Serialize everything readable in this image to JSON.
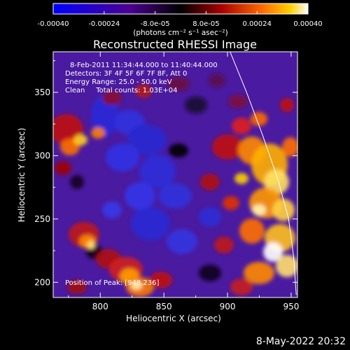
{
  "chart_data": {
    "type": "heatmap",
    "title": "Reconstructed RHESSI Image",
    "xlabel": "Heliocentric X (arcsec)",
    "ylabel": "Heliocentric Y (arcsec)",
    "xlim": [
      763,
      955
    ],
    "ylim": [
      188,
      382
    ],
    "x_ticks": [
      800,
      850,
      900,
      950
    ],
    "y_ticks": [
      200,
      250,
      300,
      350
    ],
    "colorbar": {
      "range": [
        -0.0004,
        0.0004
      ],
      "tick_values": [
        -0.0004,
        -0.00024,
        -8e-05,
        8e-05,
        0.00024,
        0.0004
      ],
      "tick_labels": [
        "-0.00040",
        "-0.00024",
        "-8.0e-05",
        "8.0e-05",
        "0.00024",
        "0.00040"
      ],
      "unit_label": "(photons cm⁻² s⁻¹ asec⁻²)"
    },
    "annotations": [
      "8-Feb-2011 11:34:44.000 to 11:40:44.000",
      "Detectors: 3F 4F 5F 6F 7F 8F, Att 0",
      "Energy Range: 25.0 - 50.0 keV",
      "Clean     Total counts: 1.03E+04"
    ],
    "peak_label": "Position of Peak: [948,236]",
    "limb_curve": [
      [
        902,
        382
      ],
      [
        915,
        350
      ],
      [
        928,
        315
      ],
      [
        940,
        280
      ],
      [
        948,
        250
      ],
      [
        952,
        220
      ],
      [
        954,
        190
      ]
    ]
  },
  "footer": {
    "date": "8-May-2022 20:32"
  }
}
